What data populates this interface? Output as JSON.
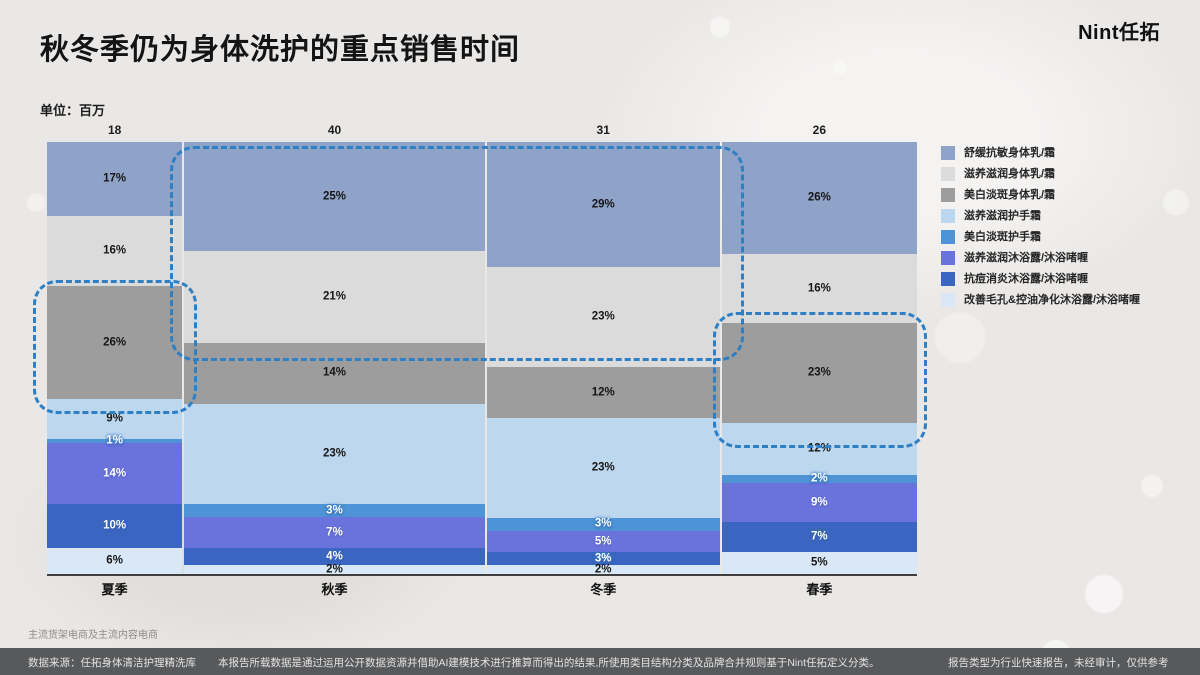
{
  "page": {
    "title": "秋冬季仍为身体洗护的重点销售时间",
    "logo": "Nint任拓",
    "unit_label": "单位：百万",
    "scope_note": "主流货架电商及主流内容电商",
    "footer": {
      "source": "数据来源：任拓身体清洁护理精洗库",
      "methodology": "本报告所载数据是通过运用公开数据资源并借助AI建模技术进行推算而得出的结果,所使用类目结构分类及品牌合并规则基于Nint任拓定义分类。",
      "disclaimer": "报告类型为行业快速报告，未经审计，仅供参考"
    }
  },
  "chart_data": {
    "type": "marimekko",
    "title": "秋冬季仍为身体洗护的重点销售时间",
    "unit": "百万",
    "categories": [
      "夏季",
      "秋季",
      "冬季",
      "春季"
    ],
    "column_totals": [
      18,
      40,
      31,
      26
    ],
    "value_suffix": "%",
    "legend_position": "right",
    "series": [
      {
        "name": "舒缓抗敏身体乳/霜",
        "color": "#8fa3c8",
        "text_color": "dark",
        "values": [
          17,
          25,
          29,
          26
        ]
      },
      {
        "name": "滋养滋润身体乳/霜",
        "color": "#dbdbdb",
        "text_color": "dark",
        "values": [
          16,
          21,
          23,
          16
        ]
      },
      {
        "name": "美白淡斑身体乳/霜",
        "color": "#9d9d9d",
        "text_color": "dark",
        "values": [
          26,
          14,
          12,
          23
        ]
      },
      {
        "name": "滋养滋润护手霜",
        "color": "#bdd7ee",
        "text_color": "dark",
        "values": [
          9,
          23,
          23,
          12
        ]
      },
      {
        "name": "美白淡斑护手霜",
        "color": "#4f93d7",
        "text_color": "light",
        "values": [
          1,
          3,
          3,
          2
        ]
      },
      {
        "name": "滋养滋润沐浴露/沐浴啫喱",
        "color": "#6a72dc",
        "text_color": "light",
        "values": [
          14,
          7,
          5,
          9
        ]
      },
      {
        "name": "抗痘消炎沐浴露/沐浴啫喱",
        "color": "#3a66c1",
        "text_color": "light",
        "values": [
          10,
          4,
          3,
          7
        ]
      },
      {
        "name": "改善毛孔&控油净化沐浴露/沐浴啫喱",
        "color": "#d9e7f6",
        "text_color": "dark",
        "values": [
          6,
          2,
          2,
          5
        ]
      }
    ],
    "annotations": [
      "夏季：美白淡斑身体乳/霜 26% 高亮",
      "秋季与冬季：舒缓抗敏身体乳/霜与滋养滋润身体乳/霜 高亮",
      "春季：美白淡斑身体乳/霜 23% 高亮"
    ],
    "highlight_color": "#2e7fc4"
  }
}
